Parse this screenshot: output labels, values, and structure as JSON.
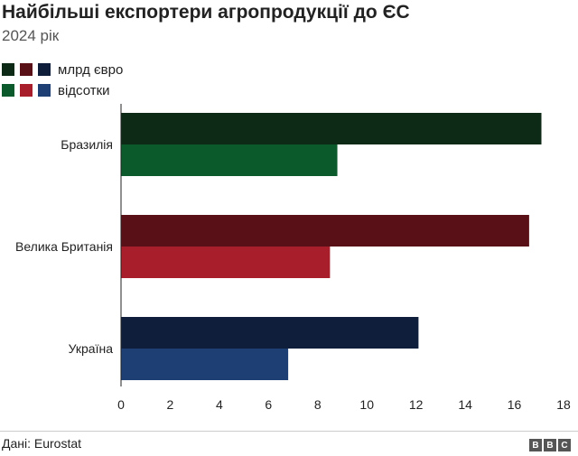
{
  "header": {
    "title": "Найбільші експортери агропродукції до ЄС",
    "subtitle": "2024 рік"
  },
  "legend": {
    "row1_label": "млрд євро",
    "row2_label": "відсотки",
    "row1_colors": [
      "#0c2a15",
      "#5a1017",
      "#0f1e3a"
    ],
    "row2_colors": [
      "#0b5a2b",
      "#a81f2b",
      "#1e3f73"
    ]
  },
  "footer": {
    "source": "Дані: Eurostat",
    "logo_letters": [
      "B",
      "B",
      "C"
    ]
  },
  "chart_data": {
    "type": "bar",
    "orientation": "horizontal",
    "categories": [
      "Бразилія",
      "Велика Британія",
      "Україна"
    ],
    "series": [
      {
        "name": "млрд євро",
        "values": [
          17.1,
          16.6,
          12.1
        ],
        "colors": [
          "#0c2a15",
          "#5a1017",
          "#0f1e3a"
        ]
      },
      {
        "name": "відсотки",
        "values": [
          8.8,
          8.5,
          6.8
        ],
        "colors": [
          "#0b5a2b",
          "#a81f2b",
          "#1e3f73"
        ]
      }
    ],
    "xlim": [
      0,
      18
    ],
    "xticks": [
      0,
      2,
      4,
      6,
      8,
      10,
      12,
      14,
      16,
      18
    ],
    "grid": false
  }
}
